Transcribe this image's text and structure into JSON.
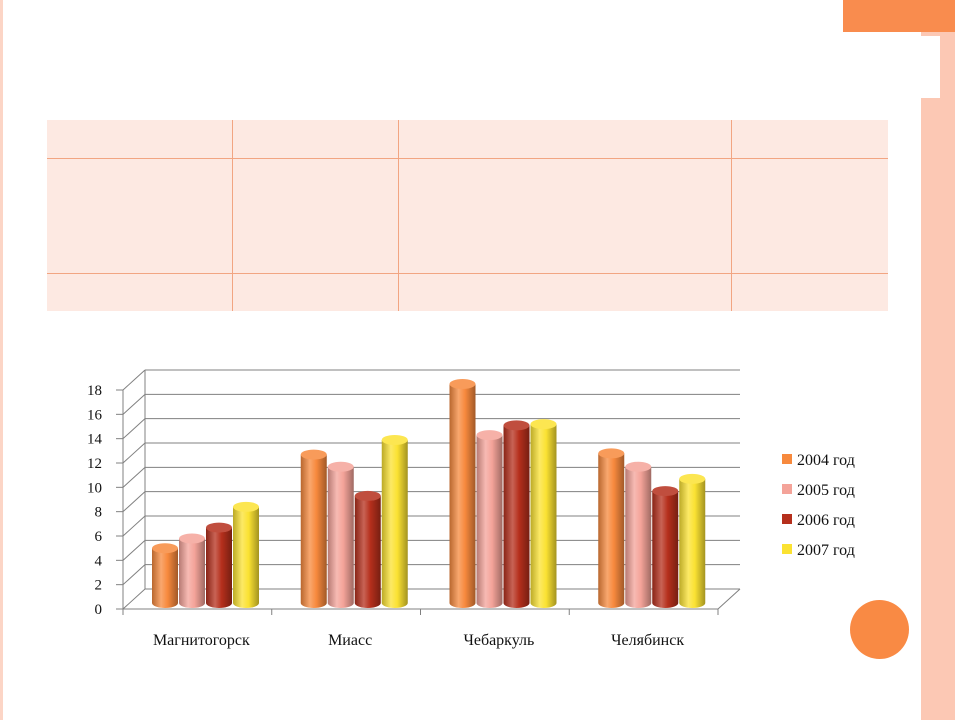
{
  "table": {
    "rows": [
      [
        "",
        "",
        "",
        ""
      ],
      [
        "",
        "",
        "",
        ""
      ],
      [
        "",
        "",
        "",
        ""
      ]
    ]
  },
  "chart_data": {
    "type": "bar",
    "categories": [
      "Магнитогорск",
      "Миасс",
      "Чебаркуль",
      "Челябинск"
    ],
    "series": [
      {
        "name": "2004 год",
        "values": [
          4.5,
          12.2,
          18,
          12.3
        ],
        "color": "#f7893d"
      },
      {
        "name": "2005 год",
        "values": [
          5.3,
          11.2,
          13.8,
          11.2
        ],
        "color": "#f4a399"
      },
      {
        "name": "2006 год",
        "values": [
          6.2,
          8.8,
          14.6,
          9.2
        ],
        "color": "#b52f1c"
      },
      {
        "name": "2007 год",
        "values": [
          7.9,
          13.4,
          14.7,
          10.2
        ],
        "color": "#fbe232"
      }
    ],
    "yticks": [
      "0",
      "2",
      "4",
      "6",
      "8",
      "10",
      "12",
      "14",
      "16",
      "18"
    ],
    "ylim": [
      0,
      18
    ],
    "grid": true,
    "legend": "right"
  }
}
